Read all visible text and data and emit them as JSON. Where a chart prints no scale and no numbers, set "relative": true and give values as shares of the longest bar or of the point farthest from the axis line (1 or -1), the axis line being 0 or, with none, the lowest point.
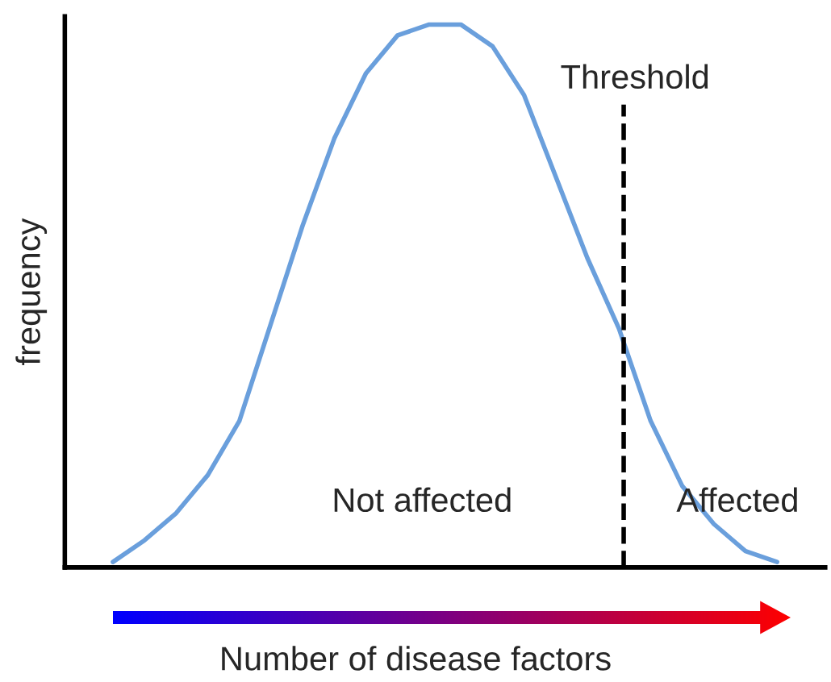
{
  "chart_data": {
    "type": "line",
    "relative": true,
    "ylabel": "frequency",
    "xlabel": "Number of disease factors",
    "categories": [
      null,
      null,
      null,
      null,
      null,
      null,
      null,
      null,
      null,
      null,
      null,
      null,
      null,
      null,
      null,
      null,
      null,
      null,
      null,
      null,
      null,
      null
    ],
    "series": [
      {
        "color": "#6a9fdc",
        "values": [
          0.01,
          0.05,
          0.1,
          0.17,
          0.27,
          0.45,
          0.63,
          0.79,
          0.91,
          0.98,
          1.0,
          1.0,
          0.96,
          0.87,
          0.72,
          0.57,
          0.44,
          0.27,
          0.15,
          0.08,
          0.03,
          0.01
        ]
      }
    ],
    "annotations": [
      "Threshold",
      "Not affected",
      "Affected"
    ],
    "marker": "none",
    "line_style": "solid",
    "grid": false,
    "legend": false
  }
}
